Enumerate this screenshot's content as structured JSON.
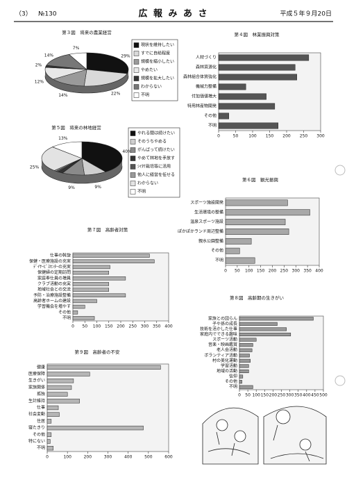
{
  "header": {
    "issue": "（3）",
    "number": "№130",
    "title": "広 報 み あ さ",
    "date": "平成５年９月20日"
  },
  "chart_data": [
    {
      "type": "pie",
      "title": "第３図　将来の農業経営",
      "categories": [
        "現状を維持したい",
        "すでに自給程度",
        "規模を縮小したい",
        "やめたい",
        "規模を拡大したい",
        "わからない",
        "不明"
      ],
      "values": [
        29,
        22,
        14,
        12,
        2,
        14,
        7
      ],
      "value_labels": [
        "29%",
        "22%",
        "14%",
        "12%",
        "2%",
        "14%",
        "7%"
      ],
      "colors": [
        "#111111",
        "#d9d9d9",
        "#9a9a9a",
        "#e8e8e8",
        "#333333",
        "#777777",
        "#ffffff"
      ]
    },
    {
      "type": "bar",
      "title": "第４図　林業振興対策",
      "categories": [
        "人材づくり",
        "森林資源化",
        "森林組合体質強化",
        "機械力整備",
        "付加価値増大",
        "特用林産物開発",
        "その他",
        "不明"
      ],
      "values": [
        265,
        225,
        230,
        80,
        140,
        165,
        30,
        175
      ],
      "xlim": [
        0,
        300
      ],
      "xticks": [
        0,
        50,
        100,
        150,
        200,
        250,
        300
      ],
      "color": "#555555"
    },
    {
      "type": "pie",
      "title": "第５図　将来の林地経営",
      "categories": [
        "やれる間は続けたい",
        "そのうちやめる",
        "がんばって続けたい",
        "やめて林地を手放す",
        "ｼｲﾀｹ栽培等に活用",
        "他人に経営を任せる",
        "わからない",
        "不明"
      ],
      "values": [
        40,
        9,
        9,
        2,
        1,
        1,
        25,
        13
      ],
      "value_labels": [
        "40%",
        "9%",
        "9%",
        null,
        null,
        null,
        "25%",
        "13%"
      ],
      "colors": [
        "#111111",
        "#cfcfcf",
        "#8a8a8a",
        "#333333",
        "#555555",
        "#999999",
        "#e3e3e3",
        "#ffffff"
      ]
    },
    {
      "type": "bar",
      "title": "第６図　観光振興",
      "categories": [
        "スポーツ施設開発",
        "生活環境の整備",
        "温泉スポーツ施設",
        "ぽかぽかランド周辺整備",
        "親水公園整備",
        "その他",
        "不明"
      ],
      "values": [
        265,
        360,
        255,
        270,
        110,
        60,
        125
      ],
      "xlim": [
        0,
        400
      ],
      "xticks": [
        0,
        50,
        100,
        150,
        200,
        250,
        300,
        350,
        400
      ],
      "color": "#a8a8a8"
    },
    {
      "type": "bar",
      "title": "第７図　高齢者対策",
      "categories": [
        "仕事の斡旋",
        "保健・医療施設の充実",
        "ﾃﾞｲｻｰﾋﾞｽｾﾝﾀｰの充実",
        "保健婦の定期訪問",
        "家庭奉仕員の増員",
        "クラブ活動の充実",
        "地域社会との交流",
        "予防・治療施設整備",
        "高齢者ホームの建設",
        "学習機会を増やす",
        "その他",
        "不明"
      ],
      "values": [
        320,
        340,
        155,
        150,
        220,
        150,
        150,
        220,
        100,
        50,
        20,
        90
      ],
      "xlim": [
        0,
        400
      ],
      "xticks": [
        0,
        50,
        100,
        150,
        200,
        250,
        300,
        350,
        400
      ],
      "color": "#b0b0b0"
    },
    {
      "type": "bar",
      "title": "第８図　高齢期の生きがい",
      "categories": [
        "家族との団らん",
        "子や孫の成長",
        "技術を活かした仕事",
        "家庭内でできる趣味",
        "スポーツ活動",
        "音楽・映画鑑賞",
        "老人会活動",
        "ボランティア活動",
        "村の美化運動",
        "学習活動",
        "地域の活動",
        "信仰",
        "その他",
        "不明"
      ],
      "values": [
        440,
        225,
        280,
        305,
        100,
        80,
        75,
        60,
        65,
        55,
        55,
        20,
        15,
        80
      ],
      "xlim": [
        0,
        500
      ],
      "xticks": [
        0,
        50,
        100,
        150,
        200,
        250,
        300,
        350,
        400,
        450,
        500
      ],
      "color": "#999999"
    },
    {
      "type": "bar",
      "title": "第９図　高齢者の不安",
      "categories": [
        "健康",
        "医療保障",
        "生きがい",
        "家族関係",
        "孤独",
        "生計維持",
        "仕事",
        "社会変動",
        "住居",
        "寝たきり",
        "その他",
        "特にない",
        "不明"
      ],
      "values": [
        560,
        210,
        130,
        120,
        100,
        160,
        55,
        60,
        20,
        475,
        20,
        15,
        30
      ],
      "xlim": [
        0,
        600
      ],
      "xticks": [
        0,
        100,
        200,
        300,
        400,
        500,
        600
      ],
      "color": "#b5b5b5"
    }
  ]
}
